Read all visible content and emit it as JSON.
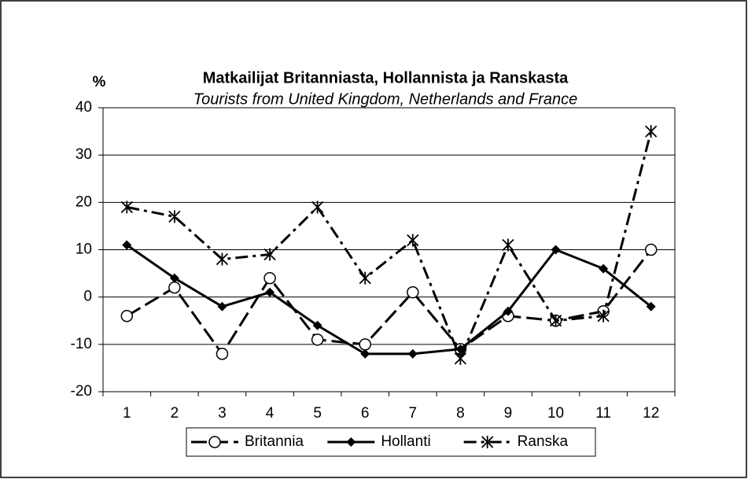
{
  "chart_data": {
    "type": "line",
    "title": "Matkailijat Britanniasta, Hollannista ja Ranskasta",
    "subtitle": "Tourists from United Kingdom, Netherlands and France",
    "y_label": "%",
    "categories": [
      "1",
      "2",
      "3",
      "4",
      "5",
      "6",
      "7",
      "8",
      "9",
      "10",
      "11",
      "12"
    ],
    "series": [
      {
        "name": "Britannia",
        "color": "#000000",
        "line_style": "dashed",
        "marker": "circle",
        "values": [
          -4,
          2,
          -12,
          4,
          -9,
          -10,
          1,
          -11,
          -4,
          -5,
          -3,
          10
        ]
      },
      {
        "name": "Hollanti",
        "color": "#000000",
        "line_style": "solid",
        "marker": "diamond",
        "values": [
          11,
          4,
          -2,
          1,
          -6,
          -12,
          -12,
          -11,
          -3,
          10,
          6,
          -2
        ]
      },
      {
        "name": "Ranska",
        "color": "#000000",
        "line_style": "dashdot",
        "marker": "star",
        "values": [
          19,
          17,
          8,
          9,
          19,
          4,
          12,
          -13,
          11,
          -5,
          -4,
          35
        ]
      }
    ],
    "ylim": [
      -20,
      40
    ],
    "yticks": [
      -20,
      -10,
      0,
      10,
      20,
      30,
      40
    ],
    "grid": true,
    "legend": "bottom"
  }
}
